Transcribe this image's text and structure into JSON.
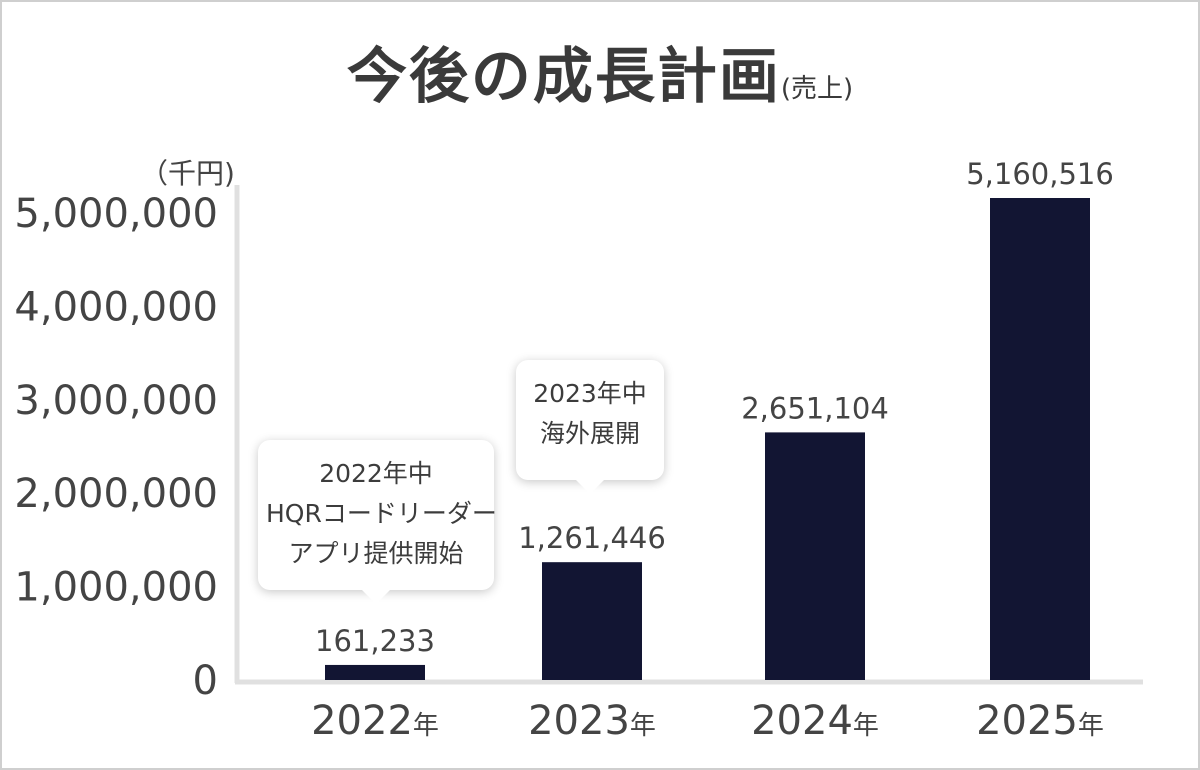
{
  "title": {
    "main": "今後の成長計画",
    "sub": "(売上)"
  },
  "unit_label": "（千円)",
  "chart_data": {
    "type": "bar",
    "title": "今後の成長計画(売上)",
    "ylabel": "（千円)",
    "xlabel": "",
    "categories": [
      "2022年",
      "2023年",
      "2024年",
      "2025年"
    ],
    "category_years": [
      "2022",
      "2023",
      "2024",
      "2025"
    ],
    "category_suffix": "年",
    "values": [
      161233,
      1261446,
      2651104,
      5160516
    ],
    "value_labels": [
      "161,233",
      "1,261,446",
      "2,651,104",
      "5,160,516"
    ],
    "ylim": [
      0,
      5300000
    ],
    "yticks": [
      0,
      1000000,
      2000000,
      3000000,
      4000000,
      5000000
    ],
    "ytick_labels": [
      "0",
      "1,000,000",
      "2,000,000",
      "3,000,000",
      "4,000,000",
      "5,000,000"
    ],
    "grid": false,
    "legend": "none",
    "bar_color": "#121533",
    "annotations": [
      {
        "category": "2022年",
        "lines": [
          "2022年中",
          "HQRコードリーダー",
          "アプリ提供開始"
        ]
      },
      {
        "category": "2023年",
        "lines": [
          "2023年中",
          "海外展開"
        ]
      }
    ]
  },
  "colors": {
    "bar": "#121533",
    "axis": "#e0e0e0",
    "text": "#444444",
    "frame": "#cfcfcf"
  }
}
